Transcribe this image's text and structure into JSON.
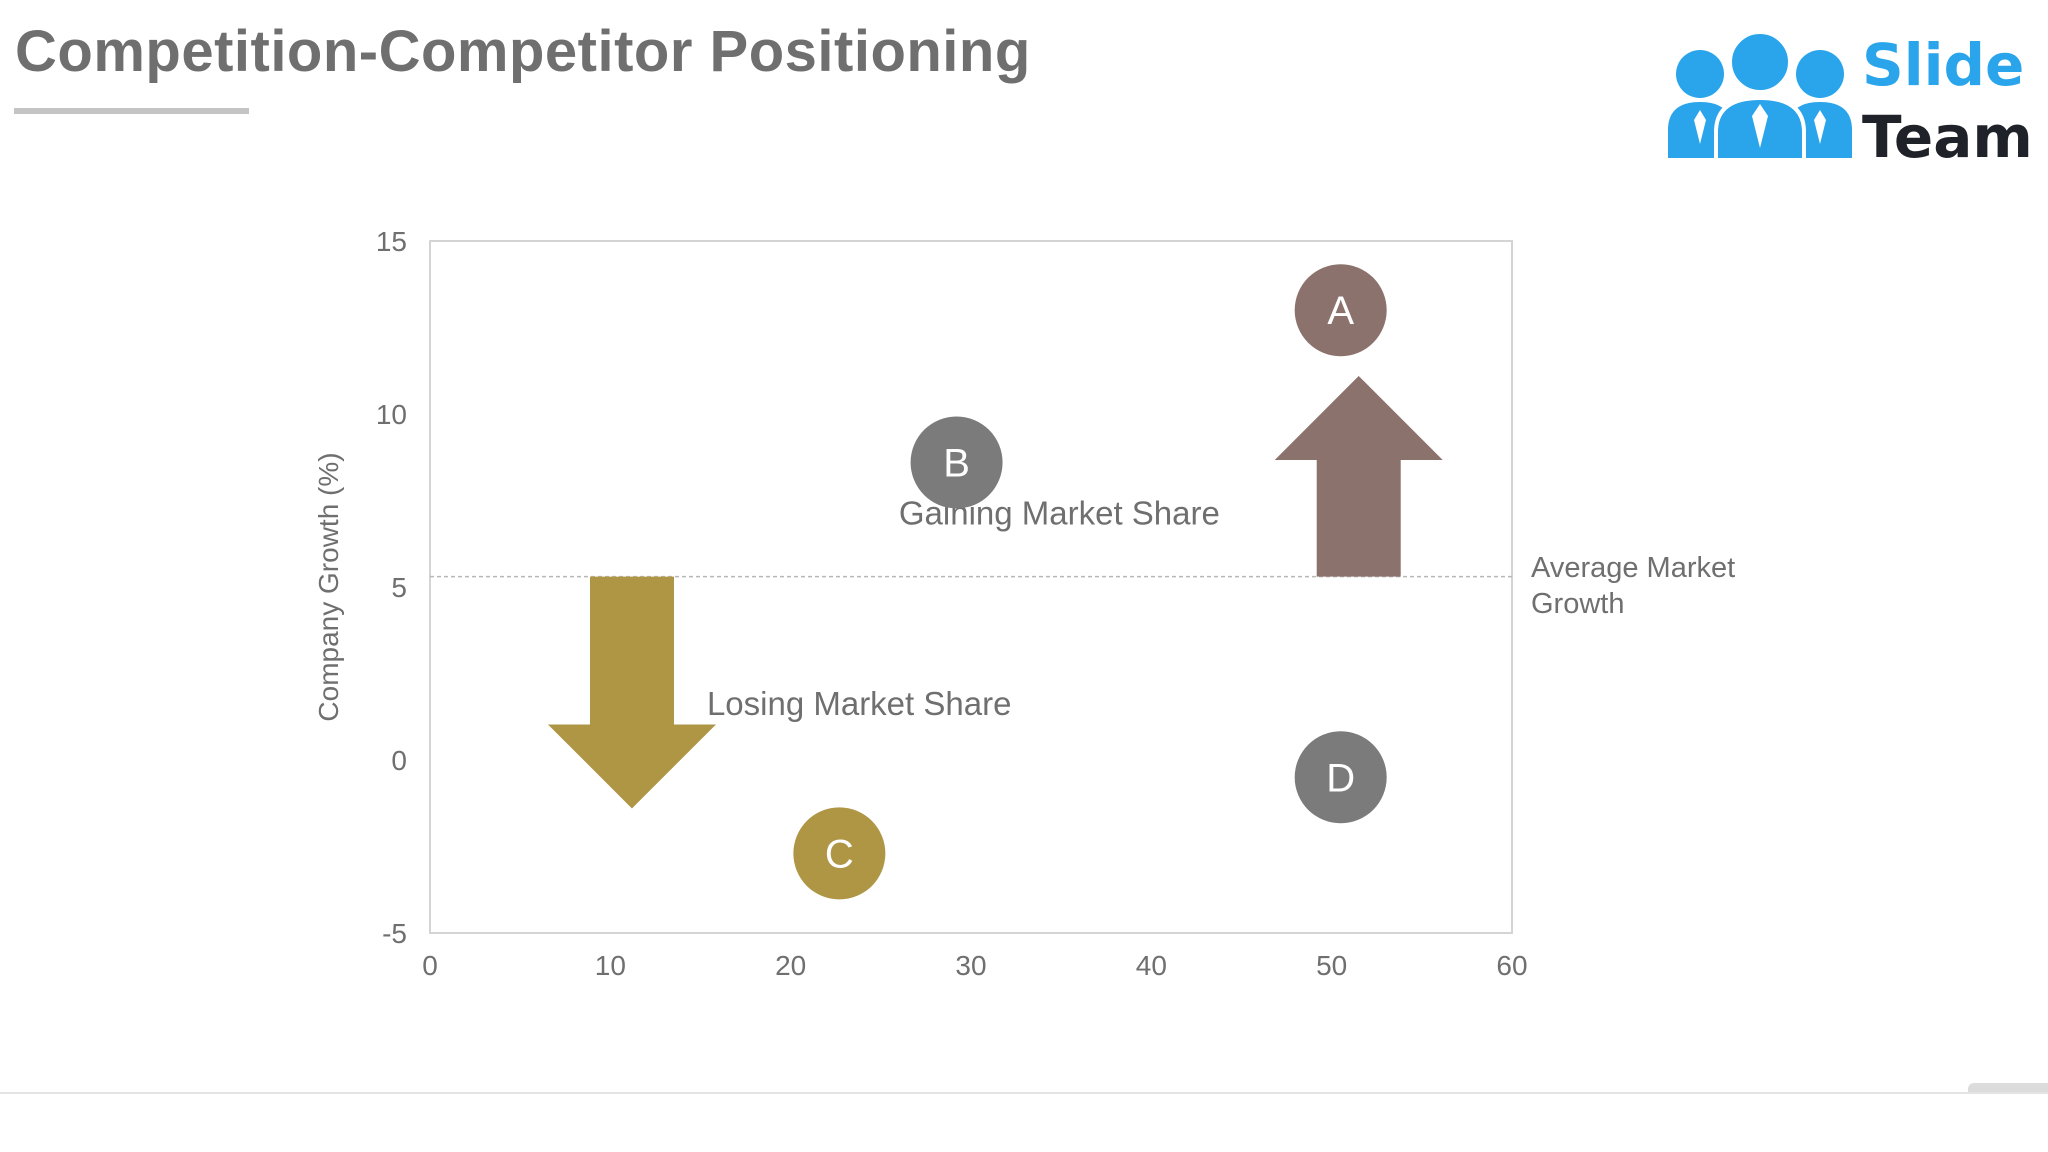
{
  "slide": {
    "title": "Competition-Competitor Positioning"
  },
  "logo": {
    "word1": "Slide",
    "word2": "Team",
    "icon": "people-team-icon",
    "colors": {
      "primary": "#2aa5ec",
      "dark": "#1f2228"
    }
  },
  "chart_data": {
    "type": "scatter",
    "title": "",
    "xlabel": "",
    "ylabel": "Company Growth (%)",
    "xlim": [
      0,
      60
    ],
    "ylim": [
      -5,
      15
    ],
    "xticks": [
      0,
      10,
      20,
      30,
      40,
      50,
      60
    ],
    "yticks": [
      -5,
      0,
      5,
      10,
      15
    ],
    "xtick_labels": [
      "0",
      "10",
      "20",
      "30",
      "40",
      "50",
      "60"
    ],
    "ytick_labels": [
      "-5",
      "0",
      "5",
      "10",
      "15"
    ],
    "grid": false,
    "legend": "none",
    "points": [
      {
        "label": "A",
        "x": 50.5,
        "y": 13.0,
        "color": "#8c726c"
      },
      {
        "label": "B",
        "x": 29.2,
        "y": 8.6,
        "color": "#7b7b7b"
      },
      {
        "label": "C",
        "x": 22.7,
        "y": -2.7,
        "color": "#ae9645"
      },
      {
        "label": "D",
        "x": 50.5,
        "y": -0.5,
        "color": "#7b7b7b"
      }
    ],
    "reference_line": {
      "y": 5.3,
      "label": "Average Market Growth",
      "style": "dashed",
      "color": "#b8b8b8"
    },
    "arrows": [
      {
        "direction": "up",
        "x": 51.5,
        "from_y": 5.3,
        "to_y": 11.1,
        "color": "#8c726c"
      },
      {
        "direction": "down",
        "x": 11.2,
        "from_y": 5.3,
        "to_y": -1.4,
        "color": "#ae9645"
      }
    ],
    "annotations": [
      {
        "text": "Gaining Market Share",
        "x": 34.9,
        "y": 6.8
      },
      {
        "text": "Losing Market Share",
        "x": 23.8,
        "y": 1.3
      }
    ],
    "ref_label_lines": [
      "Average Market",
      "Growth"
    ]
  }
}
